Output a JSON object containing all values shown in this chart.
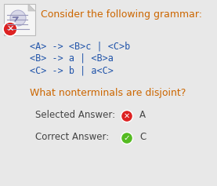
{
  "bg_color": "#e8e8e8",
  "title_text": "Consider the following grammar:",
  "title_color": "#cc6600",
  "grammar_lines": [
    "<A> -> <B>c | <C>b",
    "<B> -> a | <B>a",
    "<C> -> b | a<C>"
  ],
  "grammar_color": "#2255aa",
  "question_text": "What nonterminals are disjoint?",
  "question_color": "#cc6600",
  "selected_label": "Selected Answer:",
  "selected_answer": "A",
  "selected_color": "#444444",
  "correct_label": "Correct Answer:",
  "correct_answer": "C",
  "correct_color": "#444444",
  "answer_text_color": "#444444",
  "wrong_icon_color": "#dd2222",
  "correct_icon_color": "#55bb22",
  "icon_bg": "#f5f5f5",
  "icon_border": "#bbbbbb",
  "icon_line_color": "#9999bb",
  "fig_w": 2.77,
  "fig_h": 2.37,
  "dpi": 100
}
